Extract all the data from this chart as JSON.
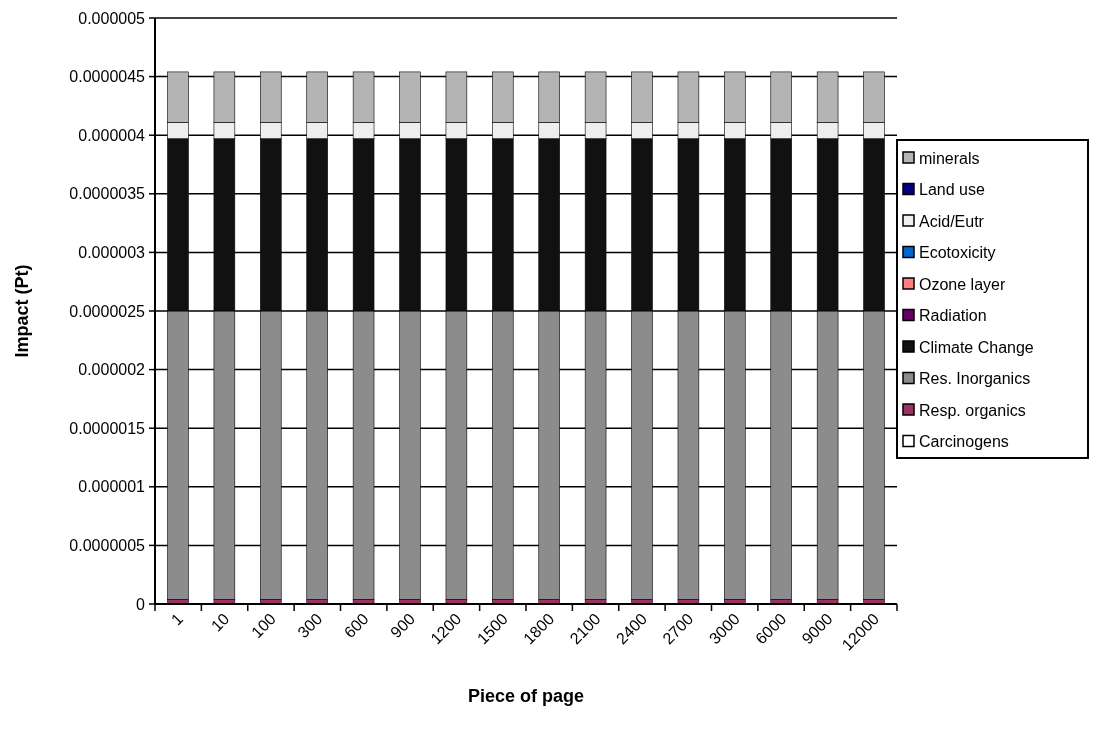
{
  "chart_data": {
    "type": "bar",
    "stacked": true,
    "xlabel": "Piece of page",
    "ylabel": "Impact (Pt)",
    "categories": [
      "1",
      "10",
      "100",
      "300",
      "600",
      "900",
      "1200",
      "1500",
      "1800",
      "2100",
      "2400",
      "2700",
      "3000",
      "6000",
      "9000",
      "12000"
    ],
    "series": [
      {
        "name": "Carcinogens",
        "color": "#ffffff",
        "values": [
          0,
          0,
          0,
          0,
          0,
          0,
          0,
          0,
          0,
          0,
          0,
          0,
          0,
          0,
          0,
          0
        ]
      },
      {
        "name": "Resp. organics",
        "color": "#993366",
        "values": [
          4e-08,
          4e-08,
          4e-08,
          4e-08,
          4e-08,
          4e-08,
          4e-08,
          4e-08,
          4e-08,
          4e-08,
          4e-08,
          4e-08,
          4e-08,
          4e-08,
          4e-08,
          4e-08
        ]
      },
      {
        "name": "Res. Inorganics",
        "color": "#8c8c8c",
        "values": [
          2.46e-06,
          2.46e-06,
          2.46e-06,
          2.46e-06,
          2.46e-06,
          2.46e-06,
          2.46e-06,
          2.46e-06,
          2.46e-06,
          2.46e-06,
          2.46e-06,
          2.46e-06,
          2.46e-06,
          2.46e-06,
          2.46e-06,
          2.46e-06
        ]
      },
      {
        "name": "Climate Change",
        "color": "#111111",
        "values": [
          1.47e-06,
          1.47e-06,
          1.47e-06,
          1.47e-06,
          1.47e-06,
          1.47e-06,
          1.47e-06,
          1.47e-06,
          1.47e-06,
          1.47e-06,
          1.47e-06,
          1.47e-06,
          1.47e-06,
          1.47e-06,
          1.47e-06,
          1.47e-06
        ]
      },
      {
        "name": "Radiation",
        "color": "#660066",
        "values": [
          0,
          0,
          0,
          0,
          0,
          0,
          0,
          0,
          0,
          0,
          0,
          0,
          0,
          0,
          0,
          0
        ]
      },
      {
        "name": "Ozone layer",
        "color": "#ff8080",
        "values": [
          0,
          0,
          0,
          0,
          0,
          0,
          0,
          0,
          0,
          0,
          0,
          0,
          0,
          0,
          0,
          0
        ]
      },
      {
        "name": "Ecotoxicity",
        "color": "#0066cc",
        "values": [
          0,
          0,
          0,
          0,
          0,
          0,
          0,
          0,
          0,
          0,
          0,
          0,
          0,
          0,
          0,
          0
        ]
      },
      {
        "name": "Acid/Eutr",
        "color": "#eeeeee",
        "values": [
          1.4e-07,
          1.4e-07,
          1.4e-07,
          1.4e-07,
          1.4e-07,
          1.4e-07,
          1.4e-07,
          1.4e-07,
          1.4e-07,
          1.4e-07,
          1.4e-07,
          1.4e-07,
          1.4e-07,
          1.4e-07,
          1.4e-07,
          1.4e-07
        ]
      },
      {
        "name": "Land use",
        "color": "#000080",
        "values": [
          0,
          0,
          0,
          0,
          0,
          0,
          0,
          0,
          0,
          0,
          0,
          0,
          0,
          0,
          0,
          0
        ]
      },
      {
        "name": "minerals",
        "color": "#b4b4b4",
        "values": [
          4.3e-07,
          4.3e-07,
          4.3e-07,
          4.3e-07,
          4.3e-07,
          4.3e-07,
          4.3e-07,
          4.3e-07,
          4.3e-07,
          4.3e-07,
          4.3e-07,
          4.3e-07,
          4.3e-07,
          4.3e-07,
          4.3e-07,
          4.3e-07
        ]
      }
    ],
    "ylim": [
      0,
      5e-06
    ],
    "yticks": [
      {
        "value": 0,
        "label": "0"
      },
      {
        "value": 5e-07,
        "label": "0.0000005"
      },
      {
        "value": 1e-06,
        "label": "0.000001"
      },
      {
        "value": 1.5e-06,
        "label": "0.0000015"
      },
      {
        "value": 2e-06,
        "label": "0.000002"
      },
      {
        "value": 2.5e-06,
        "label": "0.0000025"
      },
      {
        "value": 3e-06,
        "label": "0.000003"
      },
      {
        "value": 3.5e-06,
        "label": "0.0000035"
      },
      {
        "value": 4e-06,
        "label": "0.000004"
      },
      {
        "value": 4.5e-06,
        "label": "0.0000045"
      },
      {
        "value": 5e-06,
        "label": "0.000005"
      }
    ],
    "grid": "y",
    "legend": "right"
  }
}
